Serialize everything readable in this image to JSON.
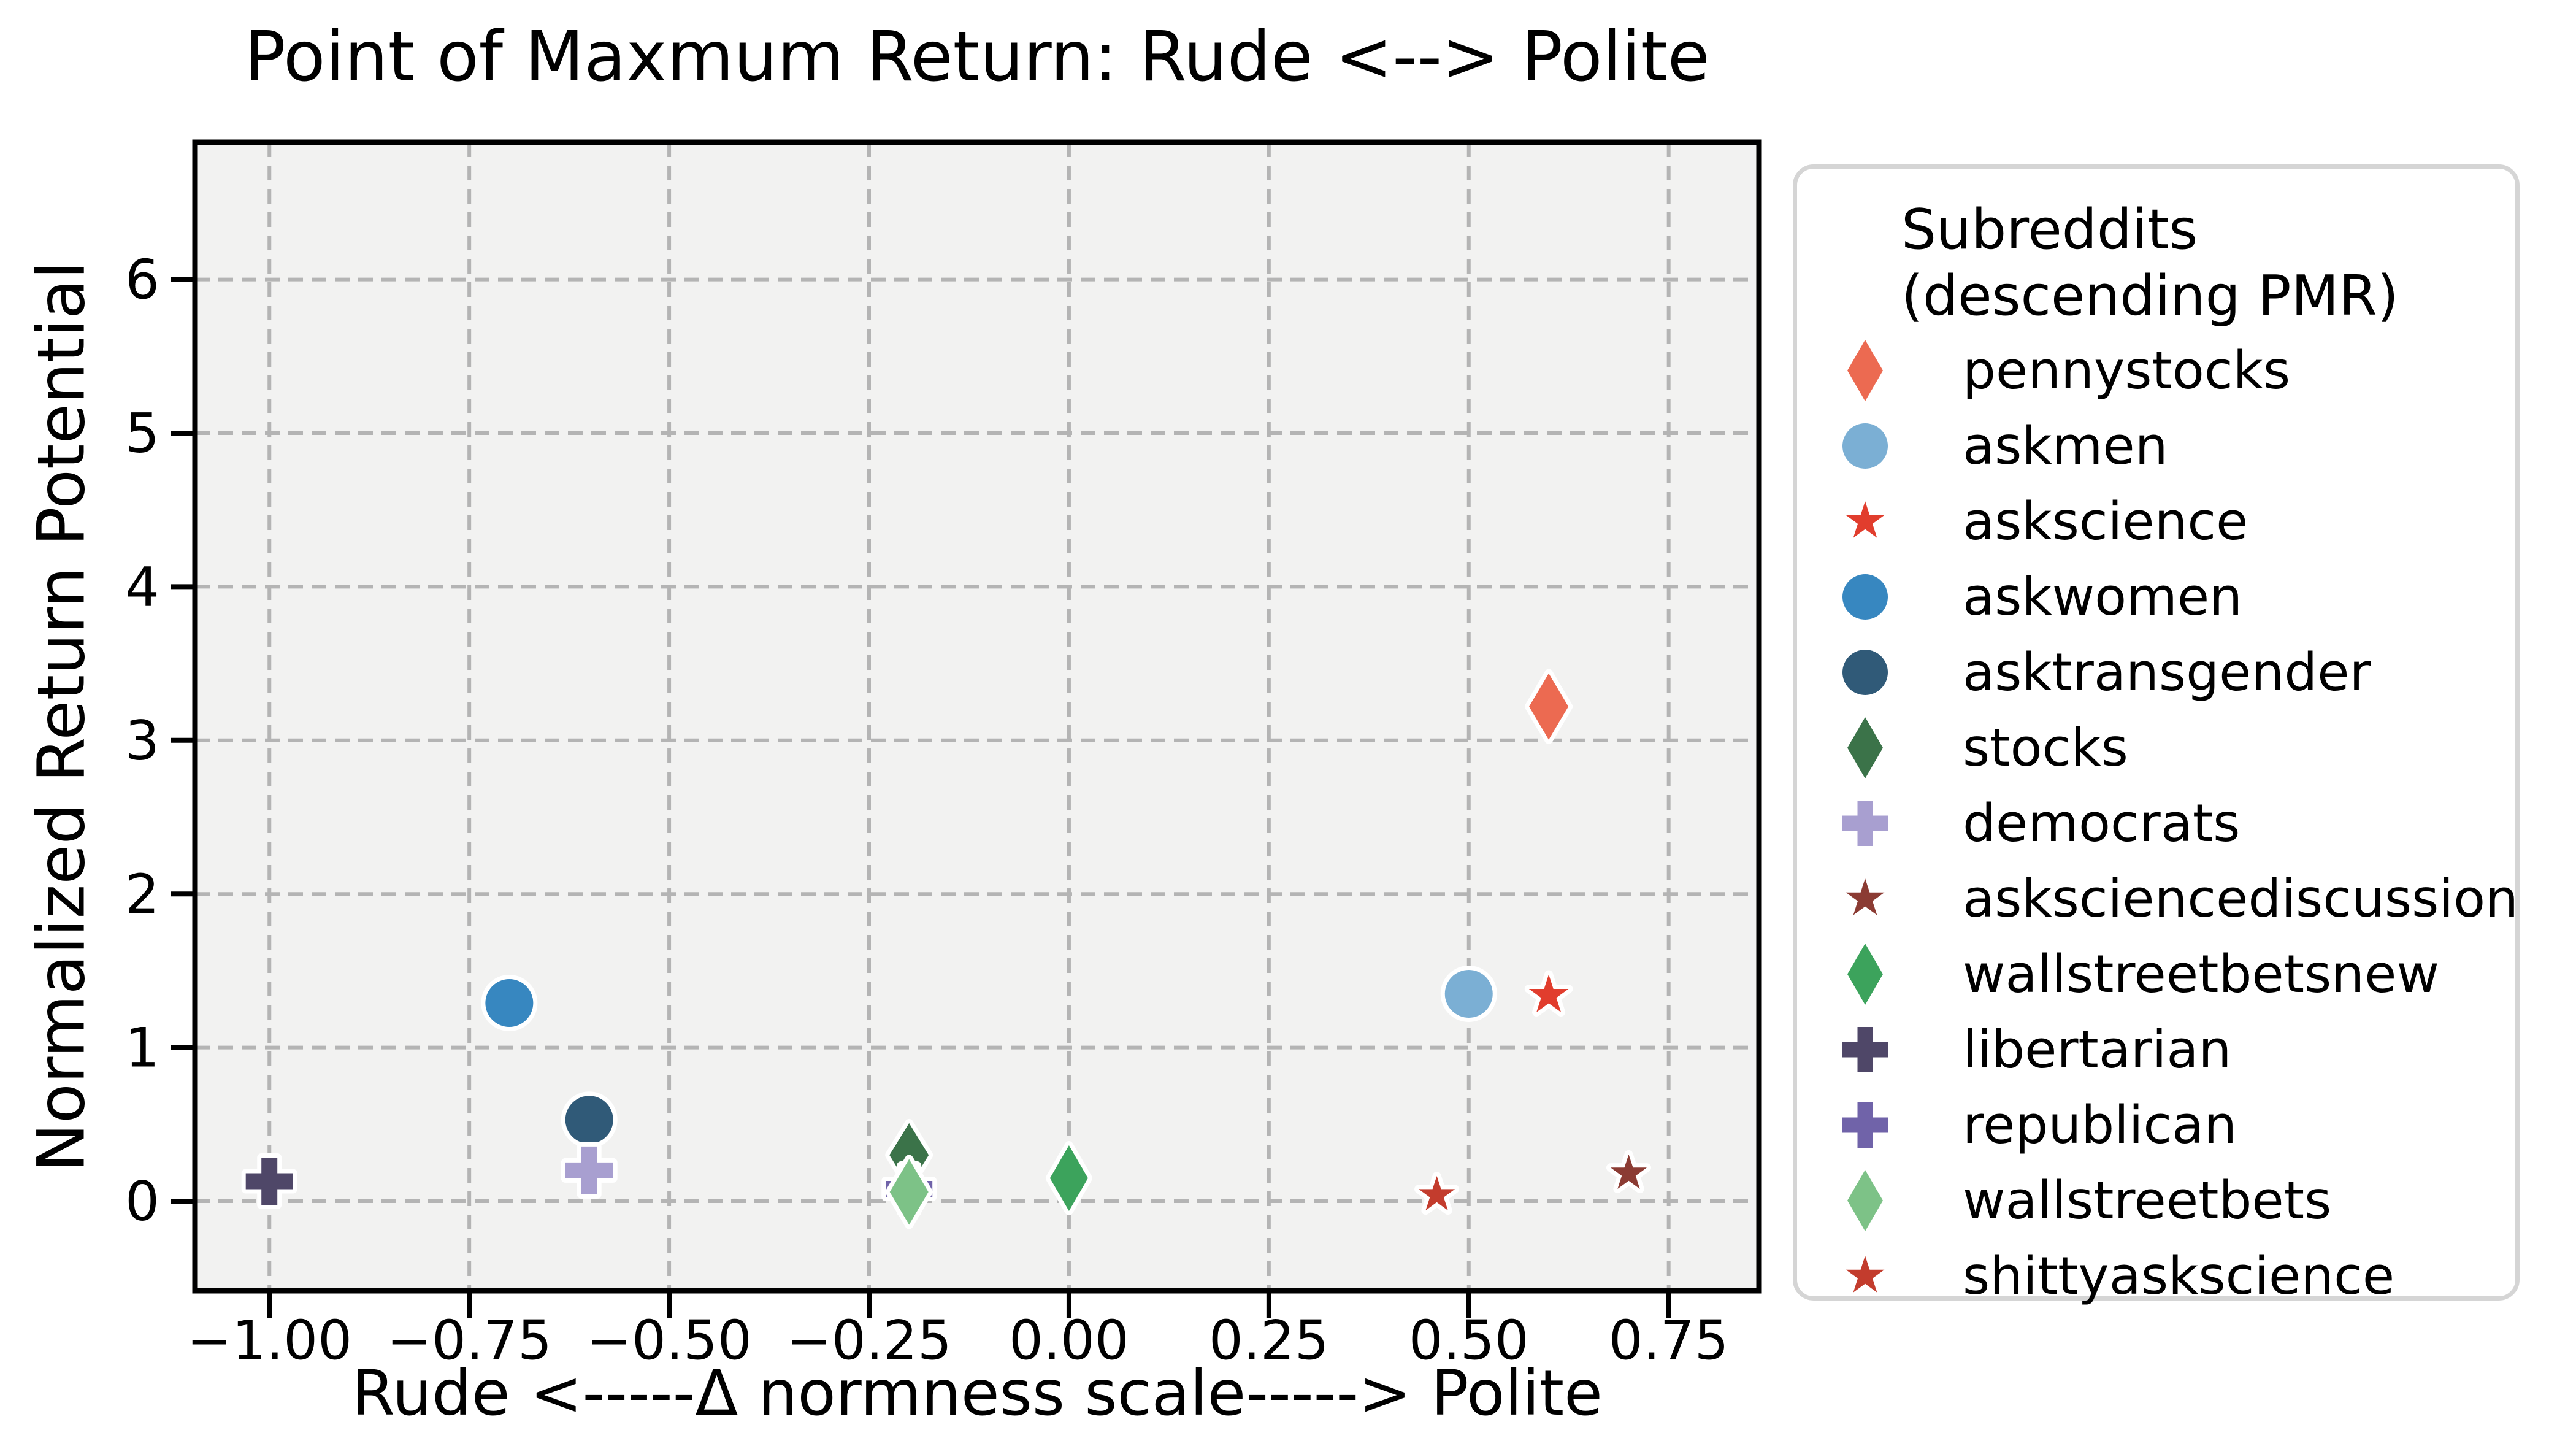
{
  "figure": {
    "background": "#ffffff",
    "axes_background": "#f2f2f1",
    "grid_color": "#b4b4b4",
    "spine_color": "#000000",
    "marker_edge_color": "#ffffff"
  },
  "chart_data": {
    "type": "scatter",
    "title": "Point of Maxmum Return: Rude <--> Polite",
    "xlabel": "Rude <-----Δ normness scale-----> Polite",
    "ylabel": "Normalized Return Potential",
    "xlim": [
      -1.093,
      0.863
    ],
    "ylim": [
      -0.583,
      6.893
    ],
    "grid": true,
    "legend_position": "right-outside",
    "legend_title_line1": "Subreddits",
    "legend_title_line2": "(descending PMR)",
    "xticks": [
      {
        "value": -1.0,
        "label": "−1.00"
      },
      {
        "value": -0.75,
        "label": "−0.75"
      },
      {
        "value": -0.5,
        "label": "−0.50"
      },
      {
        "value": -0.25,
        "label": "−0.25"
      },
      {
        "value": 0.0,
        "label": "0.00"
      },
      {
        "value": 0.25,
        "label": "0.25"
      },
      {
        "value": 0.5,
        "label": "0.50"
      },
      {
        "value": 0.75,
        "label": "0.75"
      }
    ],
    "yticks": [
      {
        "value": 0,
        "label": "0"
      },
      {
        "value": 1,
        "label": "1"
      },
      {
        "value": 2,
        "label": "2"
      },
      {
        "value": 3,
        "label": "3"
      },
      {
        "value": 4,
        "label": "4"
      },
      {
        "value": 5,
        "label": "5"
      },
      {
        "value": 6,
        "label": "6"
      }
    ],
    "series": [
      {
        "name": "pennystocks",
        "marker": "thin-diamond",
        "color": "#ec6a51",
        "x": 0.6,
        "y": 3.22,
        "w": 64,
        "h": 108
      },
      {
        "name": "askmen",
        "marker": "circle",
        "color": "#7bafd4",
        "x": 0.5,
        "y": 1.35,
        "d": 78
      },
      {
        "name": "askscience",
        "marker": "star",
        "color": "#e13d2d",
        "x": 0.6,
        "y": 1.34,
        "d": 68
      },
      {
        "name": "askwomen",
        "marker": "circle",
        "color": "#3787c0",
        "x": -0.7,
        "y": 1.29,
        "d": 78
      },
      {
        "name": "asktransgender",
        "marker": "circle",
        "color": "#305a78",
        "x": -0.6,
        "y": 0.53,
        "d": 78
      },
      {
        "name": "stocks",
        "marker": "thin-diamond",
        "color": "#3b7349",
        "x": -0.2,
        "y": 0.3,
        "w": 64,
        "h": 104
      },
      {
        "name": "democrats",
        "marker": "plus",
        "color": "#a89fd0",
        "x": -0.6,
        "y": 0.2,
        "w": 78,
        "t": 26
      },
      {
        "name": "asksciencediscussion",
        "marker": "star",
        "color": "#8b3b33",
        "x": 0.7,
        "y": 0.18,
        "d": 62
      },
      {
        "name": "wallstreetbetsnew",
        "marker": "thin-diamond",
        "color": "#3ca35c",
        "x": 0.0,
        "y": 0.15,
        "w": 62,
        "h": 107
      },
      {
        "name": "libertarian",
        "marker": "plus",
        "color": "#4f4768",
        "x": -1.0,
        "y": 0.13,
        "w": 77,
        "t": 26
      },
      {
        "name": "republican",
        "marker": "plus",
        "color": "#7063a9",
        "x": -0.2,
        "y": 0.08,
        "w": 76,
        "t": 26
      },
      {
        "name": "wallstreetbets",
        "marker": "thin-diamond",
        "color": "#7dc287",
        "x": -0.2,
        "y": 0.06,
        "w": 63,
        "h": 107
      },
      {
        "name": "shittyaskscience",
        "marker": "star",
        "color": "#c33c2d",
        "x": 0.46,
        "y": 0.04,
        "d": 62
      }
    ]
  }
}
